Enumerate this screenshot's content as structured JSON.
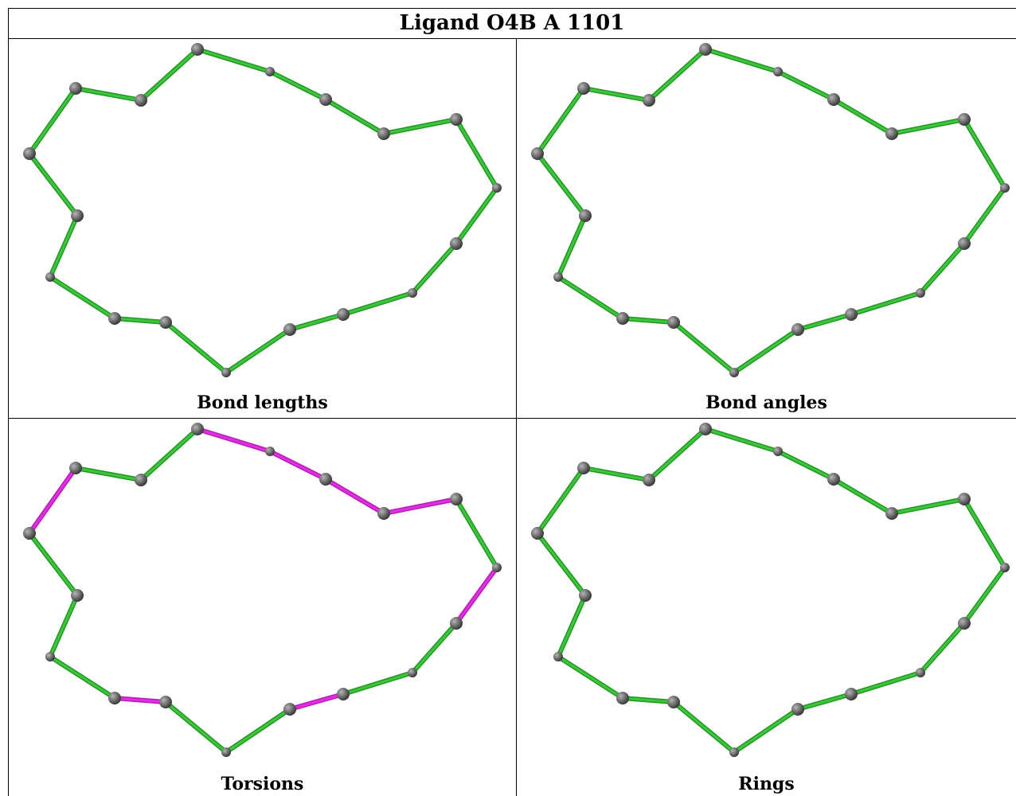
{
  "title": "Ligand O4B A 1101",
  "colors": {
    "ok": "#3ec43e",
    "ok_dark": "#1f9a1f",
    "outlier": "#e02ee0",
    "atom": "#6b6b6b"
  },
  "molecule": {
    "atoms": [
      {
        "id": 0,
        "size": "large"
      },
      {
        "id": 1,
        "size": "large"
      },
      {
        "id": 2,
        "size": "large"
      },
      {
        "id": 3,
        "size": "large"
      },
      {
        "id": 4,
        "size": "small"
      },
      {
        "id": 5,
        "size": "large"
      },
      {
        "id": 6,
        "size": "large"
      },
      {
        "id": 7,
        "size": "large"
      },
      {
        "id": 8,
        "size": "small"
      },
      {
        "id": 9,
        "size": "large"
      },
      {
        "id": 10,
        "size": "small"
      },
      {
        "id": 11,
        "size": "large"
      },
      {
        "id": 12,
        "size": "large"
      },
      {
        "id": 13,
        "size": "small"
      },
      {
        "id": 14,
        "size": "large"
      },
      {
        "id": 15,
        "size": "large"
      },
      {
        "id": 16,
        "size": "small"
      },
      {
        "id": 17,
        "size": "large"
      }
    ],
    "bonds": [
      [
        0,
        1
      ],
      [
        1,
        2
      ],
      [
        2,
        3
      ],
      [
        3,
        4
      ],
      [
        4,
        5
      ],
      [
        5,
        6
      ],
      [
        6,
        7
      ],
      [
        7,
        8
      ],
      [
        8,
        9
      ],
      [
        9,
        10
      ],
      [
        10,
        11
      ],
      [
        11,
        12
      ],
      [
        12,
        13
      ],
      [
        13,
        14
      ],
      [
        14,
        15
      ],
      [
        15,
        16
      ],
      [
        16,
        17
      ],
      [
        17,
        0
      ]
    ]
  },
  "panels": [
    {
      "caption": "Bond lengths",
      "outlier_bonds": []
    },
    {
      "caption": "Bond angles",
      "outlier_bonds": []
    },
    {
      "caption": "Torsions",
      "outlier_bonds": [
        [
          0,
          1
        ],
        [
          3,
          4
        ],
        [
          4,
          5
        ],
        [
          5,
          6
        ],
        [
          6,
          7
        ],
        [
          8,
          9
        ],
        [
          11,
          12
        ],
        [
          14,
          15
        ]
      ]
    },
    {
      "caption": "Rings",
      "outlier_bonds": []
    }
  ]
}
